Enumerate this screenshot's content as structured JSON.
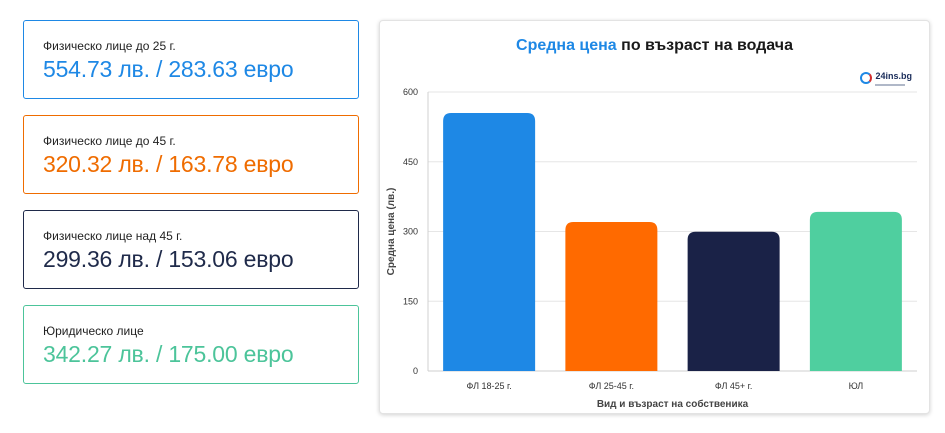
{
  "cards": [
    {
      "label": "Физическо лице до 25 г.",
      "value": "554.73 лв. / 283.63 евро",
      "color": "#1e88e5"
    },
    {
      "label": "Физическо лице до 45 г.",
      "value": "320.32 лв. / 163.78 евро",
      "color": "#ef6c00"
    },
    {
      "label": "Физическо лице над 45 г.",
      "value": "299.36 лв. / 153.06 евро",
      "color": "#1f2a4a"
    },
    {
      "label": "Юридическо лице",
      "value": "342.27 лв. / 175.00 евро",
      "color": "#4cc49a"
    }
  ],
  "logo": {
    "text": "24ins.bg"
  },
  "chart_data": {
    "type": "bar",
    "title_highlight": "Средна цена",
    "title_rest": " по възраст на водача",
    "categories": [
      "ФЛ 18-25 г.",
      "ФЛ 25-45 г.",
      "ФЛ 45+ г.",
      "ЮЛ"
    ],
    "values": [
      554.73,
      320.32,
      299.36,
      342.27
    ],
    "colors": [
      "#1e88e5",
      "#ff6a00",
      "#1a2247",
      "#4fcf9f"
    ],
    "xlabel": "Вид и възраст на собственика",
    "ylabel": "Средна цена (лв.)",
    "ylim": [
      0,
      600
    ],
    "yticks": [
      0,
      150,
      300,
      450,
      600
    ],
    "grid": true
  }
}
